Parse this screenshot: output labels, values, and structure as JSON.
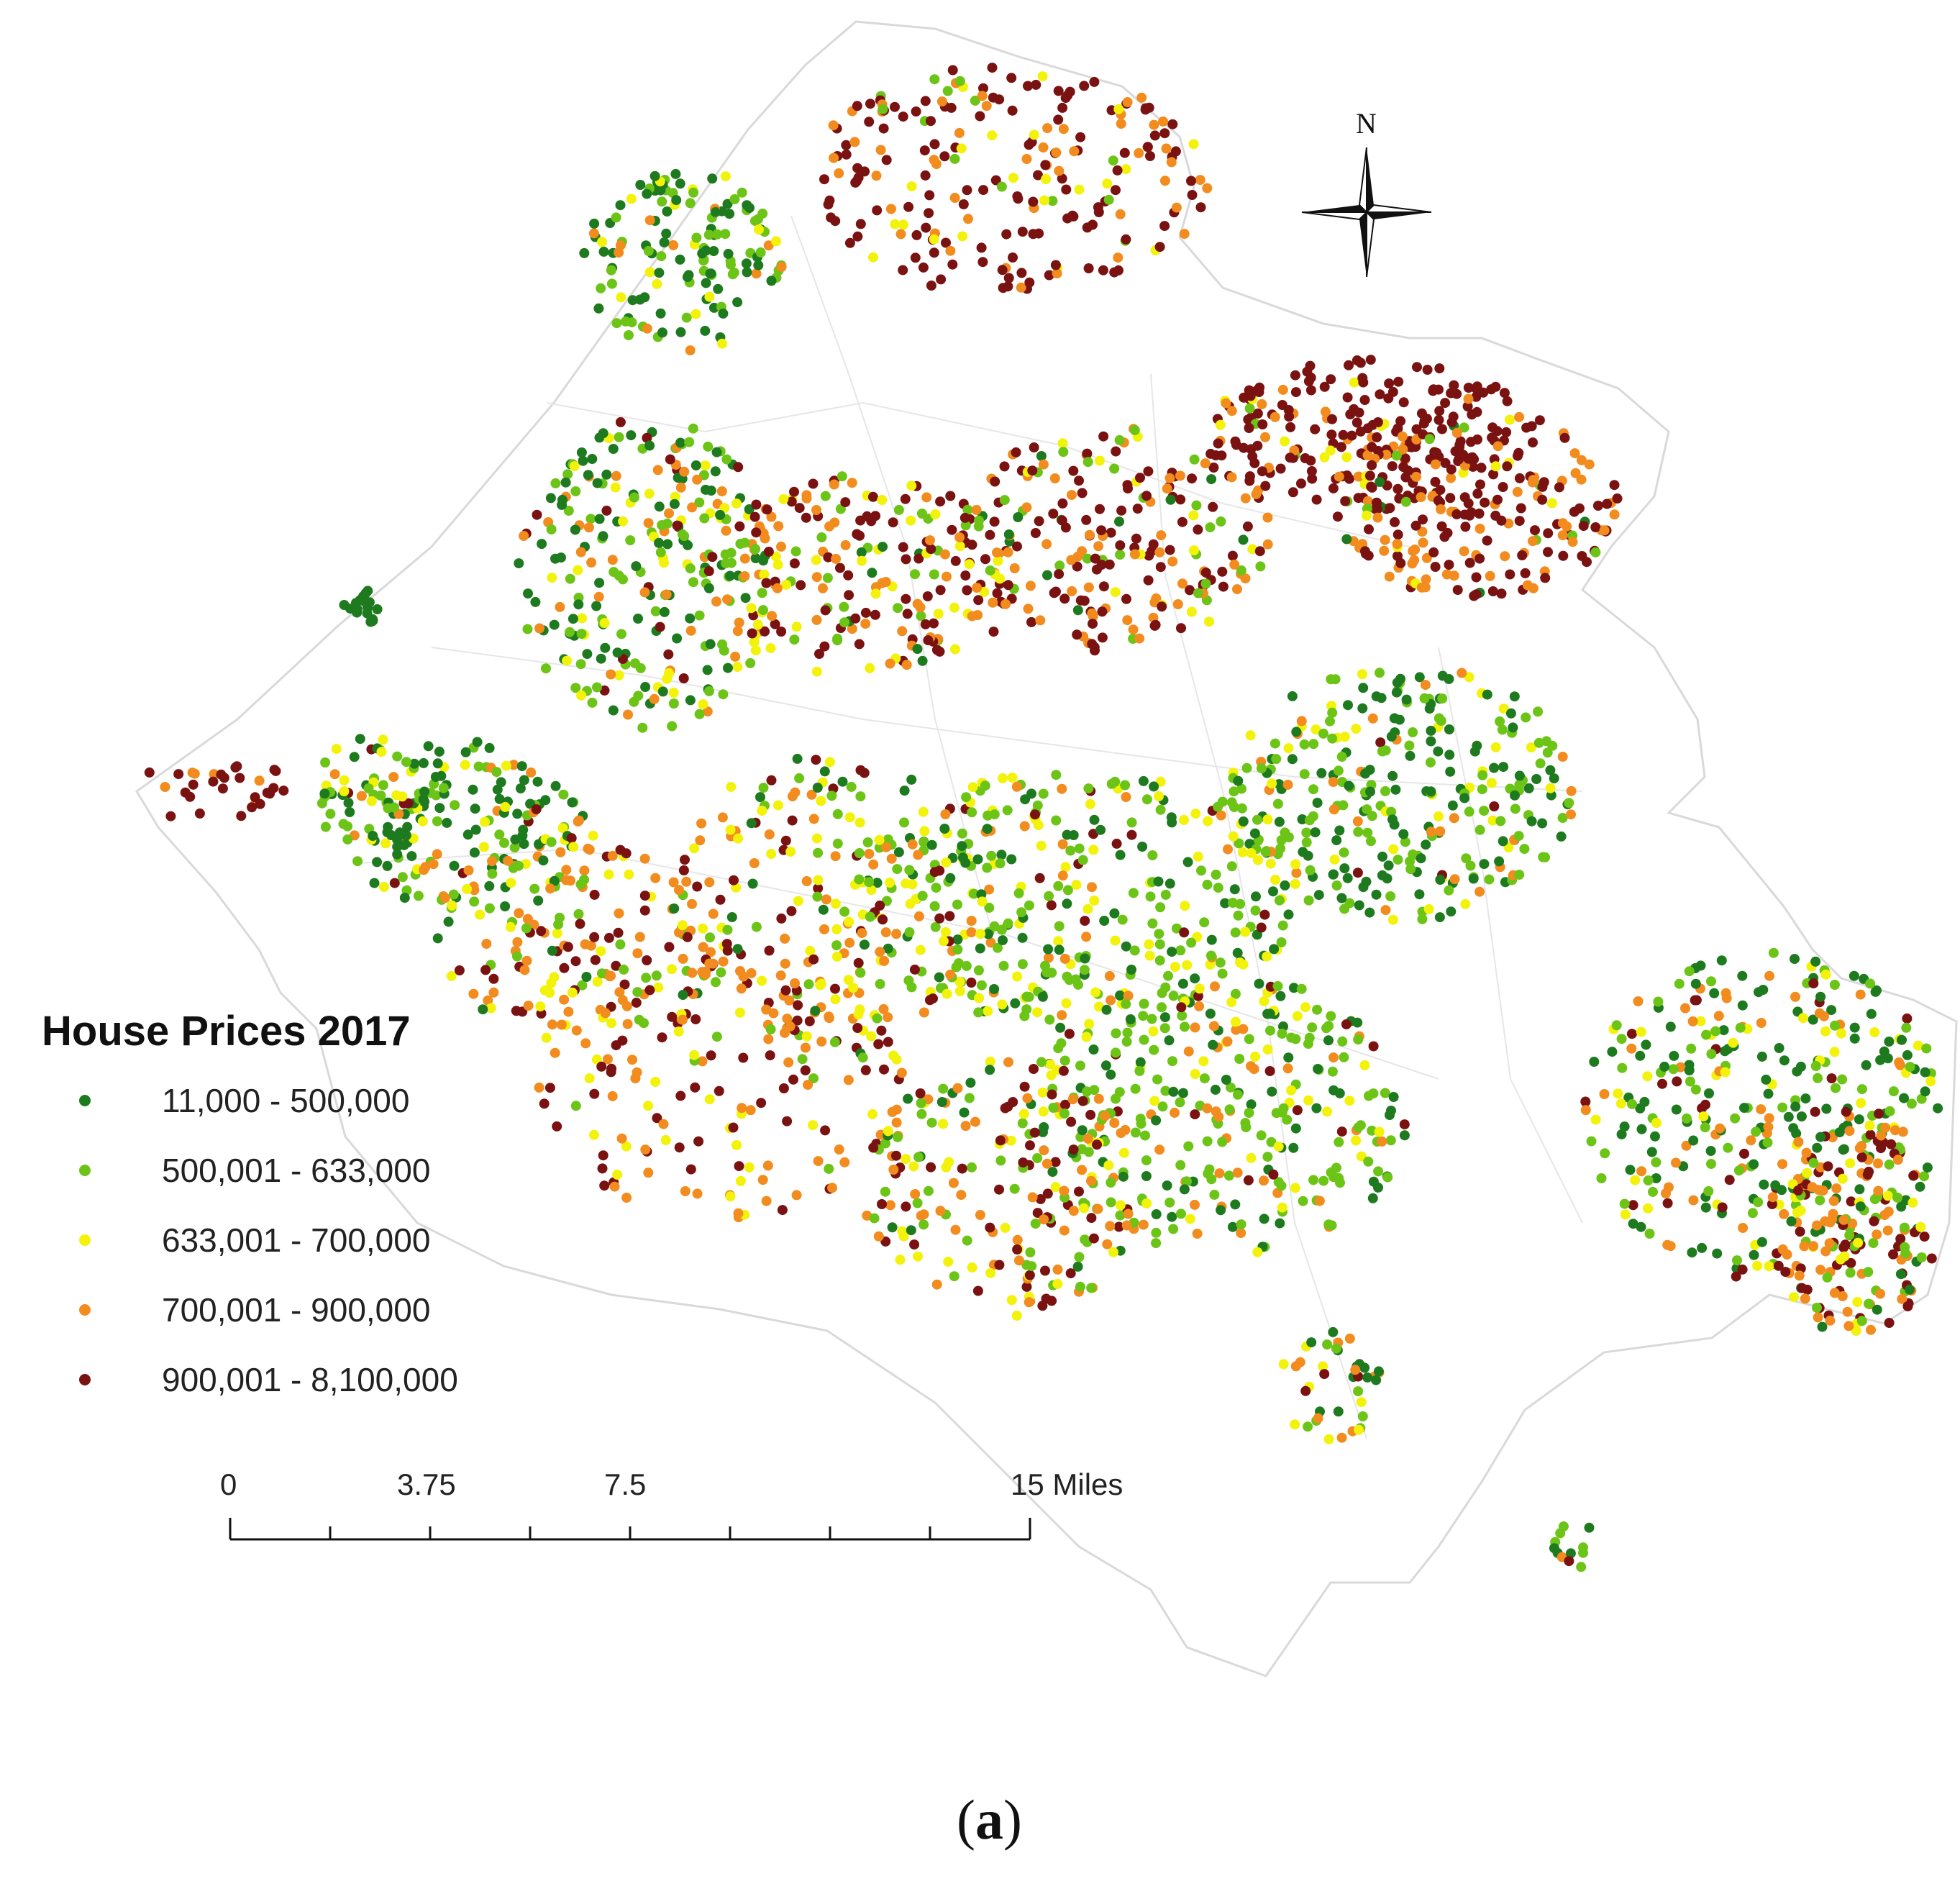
{
  "legend": {
    "title": "House Prices 2017",
    "classes": [
      {
        "label": "11,000 - 500,000",
        "color": "#1e7a1e"
      },
      {
        "label": "500,001 - 633,000",
        "color": "#6cc417"
      },
      {
        "label": "633,001 - 700,000",
        "color": "#f2f20a"
      },
      {
        "label": "700,001 - 900,000",
        "color": "#f28c1e"
      },
      {
        "label": "900,001 - 8,100,000",
        "color": "#7a1212"
      }
    ]
  },
  "scale_bar": {
    "ticks": [
      "0",
      "3.75",
      "7.5",
      "15 Miles"
    ]
  },
  "north_arrow": {
    "label": "N",
    "icon": "compass-rose-icon"
  },
  "panel_label": {
    "open": "(",
    "letter": "a",
    "close": ")"
  },
  "colors": {
    "boundary": "#d9d9d9"
  }
}
